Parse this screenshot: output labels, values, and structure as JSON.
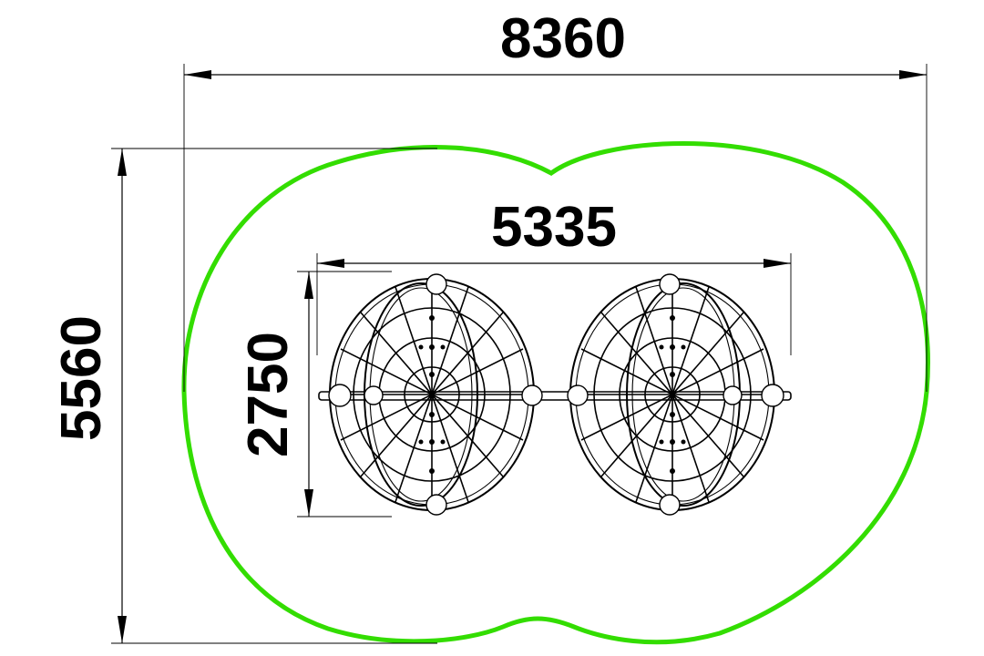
{
  "dimensions": {
    "total_width": "8360",
    "total_depth": "5560",
    "equipment_width": "5335",
    "equipment_depth": "2750"
  },
  "colors": {
    "safety_zone": "#33dd00",
    "lines": "#000000",
    "background": "#ffffff"
  }
}
